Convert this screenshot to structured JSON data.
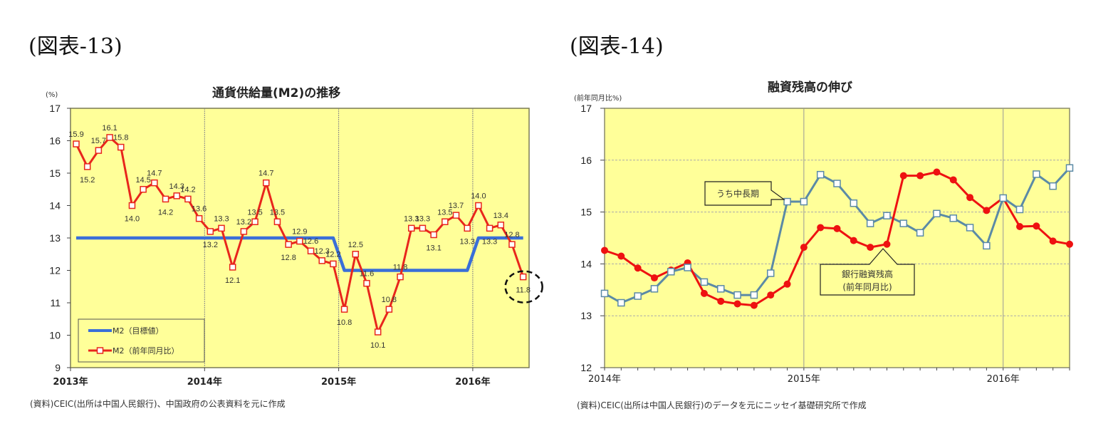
{
  "figures": [
    {
      "label": "(図表-13)",
      "title": "通貨供給量(M2)の推移",
      "unit": "(%)",
      "source": "(資料)CEIC(出所は中国人民銀行)、中国政府の公表資料を元に作成",
      "legend": [
        "M2（目標値）",
        "M2（前年同月比）"
      ]
    },
    {
      "label": "(図表-14)",
      "title": "融資残高の伸び",
      "unit": "(前年同月比%)",
      "source": "(資料)CEIC(出所は中国人民銀行)のデータを元にニッセイ基礎研究所で作成",
      "callouts": [
        "うち中長期",
        "銀行融資残高",
        "(前年同月比)"
      ]
    }
  ],
  "chart_data": [
    {
      "type": "line",
      "title": "通貨供給量(M2)の推移",
      "xlabel": "",
      "ylabel": "(%)",
      "ylim": [
        9,
        17
      ],
      "yticks": [
        9,
        10,
        11,
        12,
        13,
        14,
        15,
        16,
        17
      ],
      "xtick_labels": [
        "2013年",
        "2014年",
        "2015年",
        "2016年"
      ],
      "x": [
        "2013-01",
        "2013-02",
        "2013-03",
        "2013-04",
        "2013-05",
        "2013-06",
        "2013-07",
        "2013-08",
        "2013-09",
        "2013-10",
        "2013-11",
        "2013-12",
        "2014-01",
        "2014-02",
        "2014-03",
        "2014-04",
        "2014-05",
        "2014-06",
        "2014-07",
        "2014-08",
        "2014-09",
        "2014-10",
        "2014-11",
        "2014-12",
        "2015-01",
        "2015-02",
        "2015-03",
        "2015-04",
        "2015-05",
        "2015-06",
        "2015-07",
        "2015-08",
        "2015-09",
        "2015-10",
        "2015-11",
        "2015-12",
        "2016-01",
        "2016-02",
        "2016-03",
        "2016-04",
        "2016-05"
      ],
      "series": [
        {
          "name": "M2（目標値）",
          "color": "#3a6fd8",
          "values": [
            13,
            13,
            13,
            13,
            13,
            13,
            13,
            13,
            13,
            13,
            13,
            13,
            13,
            13,
            13,
            13,
            13,
            13,
            13,
            13,
            13,
            13,
            13,
            13,
            12,
            12,
            12,
            12,
            12,
            12,
            12,
            12,
            12,
            12,
            12,
            12,
            13,
            13,
            13,
            13,
            13
          ]
        },
        {
          "name": "M2（前年同月比）",
          "color": "#e8261c",
          "marker": "square-hollow",
          "values": [
            15.9,
            15.2,
            15.7,
            16.1,
            15.8,
            14.0,
            14.5,
            14.7,
            14.2,
            14.3,
            14.2,
            13.6,
            13.2,
            13.3,
            12.1,
            13.2,
            13.5,
            14.7,
            13.5,
            12.8,
            12.9,
            12.6,
            12.3,
            12.2,
            10.8,
            12.5,
            11.6,
            10.1,
            10.8,
            11.8,
            13.3,
            13.3,
            13.1,
            13.5,
            13.7,
            13.3,
            14.0,
            13.3,
            13.4,
            12.8,
            11.8
          ]
        }
      ],
      "data_labels": true,
      "annotations": [
        "dashed ellipse around 11.8 (2016-05)"
      ],
      "grid": "vertical year lines",
      "legend_position": "lower-left inside",
      "background": "#ffff99"
    },
    {
      "type": "line",
      "title": "融資残高の伸び",
      "xlabel": "",
      "ylabel": "(前年同月比%)",
      "ylim": [
        12,
        17
      ],
      "yticks": [
        12,
        13,
        14,
        15,
        16,
        17
      ],
      "xtick_labels": [
        "2014年",
        "2015年",
        "2016年"
      ],
      "x": [
        "2014-01",
        "2014-02",
        "2014-03",
        "2014-04",
        "2014-05",
        "2014-06",
        "2014-07",
        "2014-08",
        "2014-09",
        "2014-10",
        "2014-11",
        "2014-12",
        "2015-01",
        "2015-02",
        "2015-03",
        "2015-04",
        "2015-05",
        "2015-06",
        "2015-07",
        "2015-08",
        "2015-09",
        "2015-10",
        "2015-11",
        "2015-12",
        "2016-01",
        "2016-02",
        "2016-03",
        "2016-04",
        "2016-05"
      ],
      "series": [
        {
          "name": "銀行融資残高(前年同月比)",
          "color": "#ee1111",
          "marker": "circle-filled",
          "values": [
            14.26,
            14.15,
            13.92,
            13.73,
            13.88,
            14.02,
            13.43,
            13.28,
            13.23,
            13.2,
            13.4,
            13.61,
            14.32,
            14.7,
            14.68,
            14.45,
            14.32,
            14.38,
            15.7,
            15.7,
            15.77,
            15.62,
            15.28,
            15.03,
            15.27,
            14.72,
            14.73,
            14.44,
            14.38
          ]
        },
        {
          "name": "うち中長期",
          "color": "#5b8aa6",
          "marker": "square-hollow",
          "values": [
            13.43,
            13.25,
            13.38,
            13.52,
            13.85,
            13.93,
            13.65,
            13.52,
            13.4,
            13.4,
            13.82,
            15.2,
            15.2,
            15.72,
            15.55,
            15.17,
            14.78,
            14.93,
            14.78,
            14.6,
            14.97,
            14.88,
            14.7,
            14.35,
            15.27,
            15.05,
            15.73,
            15.5,
            15.85
          ]
        }
      ],
      "grid": "horizontal dashed + vertical year lines",
      "legend_position": "callout boxes",
      "background": "#ffff99"
    }
  ]
}
